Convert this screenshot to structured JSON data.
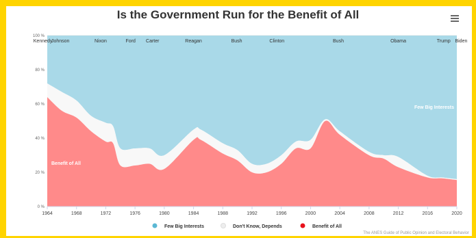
{
  "page": {
    "title": "Is the Government Run for the Benefit of All",
    "menu_icon": "hamburger-menu-icon",
    "credit": "The ANES Guide of Public Opinion and Electoral Behavior",
    "frame_color": "#ffd400"
  },
  "chart_data": {
    "type": "area",
    "stacking": "percent",
    "title": "Is the Government Run for the Benefit of All",
    "xlabel": "",
    "ylabel": "",
    "xlim": [
      1964,
      2020
    ],
    "ylim": [
      0,
      100
    ],
    "x_ticks": [
      1964,
      1968,
      1972,
      1976,
      1980,
      1984,
      1988,
      1992,
      1996,
      2000,
      2004,
      2008,
      2012,
      2016,
      2020
    ],
    "y_ticks": [
      "0 %",
      "20 %",
      "40 %",
      "60 %",
      "80 %",
      "100 %"
    ],
    "grid": true,
    "legend_position": "bottom",
    "series": [
      {
        "name": "Few Big Interests",
        "color": "#a9d9e8",
        "legend_color": "#5bb8d4",
        "values": [
          28,
          33,
          38,
          47,
          51,
          53,
          66,
          66,
          66,
          70,
          55,
          55,
          63,
          67,
          75,
          75,
          70,
          62,
          61,
          49,
          56,
          68,
          70,
          71,
          82,
          83,
          84
        ],
        "label": "Few Big Interests"
      },
      {
        "name": "Don't Know, Depends",
        "color": "#f8f8f8",
        "legend_color": "#eeeeee",
        "values": [
          8,
          11,
          10,
          9,
          11,
          10,
          10,
          10,
          9,
          8,
          6,
          6,
          6,
          6,
          5,
          5,
          5,
          4,
          5,
          1,
          2,
          2,
          2,
          6,
          1,
          0.5,
          0.5
        ],
        "label": ""
      },
      {
        "name": "Benefit of All",
        "color": "#ff8a8a",
        "legend_color": "#e8121c",
        "values": [
          64,
          56,
          52,
          44,
          38,
          37,
          24,
          24,
          25,
          22,
          39,
          39,
          31,
          27,
          20,
          20,
          25,
          34,
          34,
          50,
          42,
          30,
          28,
          23,
          17,
          16.5,
          15.5
        ],
        "label": "Benefit of All"
      }
    ],
    "x": [
      1964,
      1966,
      1968,
      1970,
      1972,
      1973,
      1974,
      1976,
      1978,
      1980,
      1984,
      1985,
      1988,
      1990,
      1992,
      1994,
      1996,
      1998,
      2000,
      2002,
      2004,
      2008,
      2010,
      2012,
      2016,
      2018,
      2020
    ],
    "annotations": [
      {
        "text": "Kennedy",
        "x": 1963.4
      },
      {
        "text": "Johnson",
        "x": 1965.8
      },
      {
        "text": "Nixon",
        "x": 1971.3
      },
      {
        "text": "Ford",
        "x": 1975.4
      },
      {
        "text": "Carter",
        "x": 1978.4
      },
      {
        "text": "Reagan",
        "x": 1984.0
      },
      {
        "text": "Bush",
        "x": 1989.9
      },
      {
        "text": "Clinton",
        "x": 1995.4
      },
      {
        "text": "Bush",
        "x": 2003.8
      },
      {
        "text": "Obama",
        "x": 2012.0
      },
      {
        "text": "Trump",
        "x": 2018.2
      },
      {
        "text": "Biden",
        "x": 2020.6
      }
    ]
  }
}
